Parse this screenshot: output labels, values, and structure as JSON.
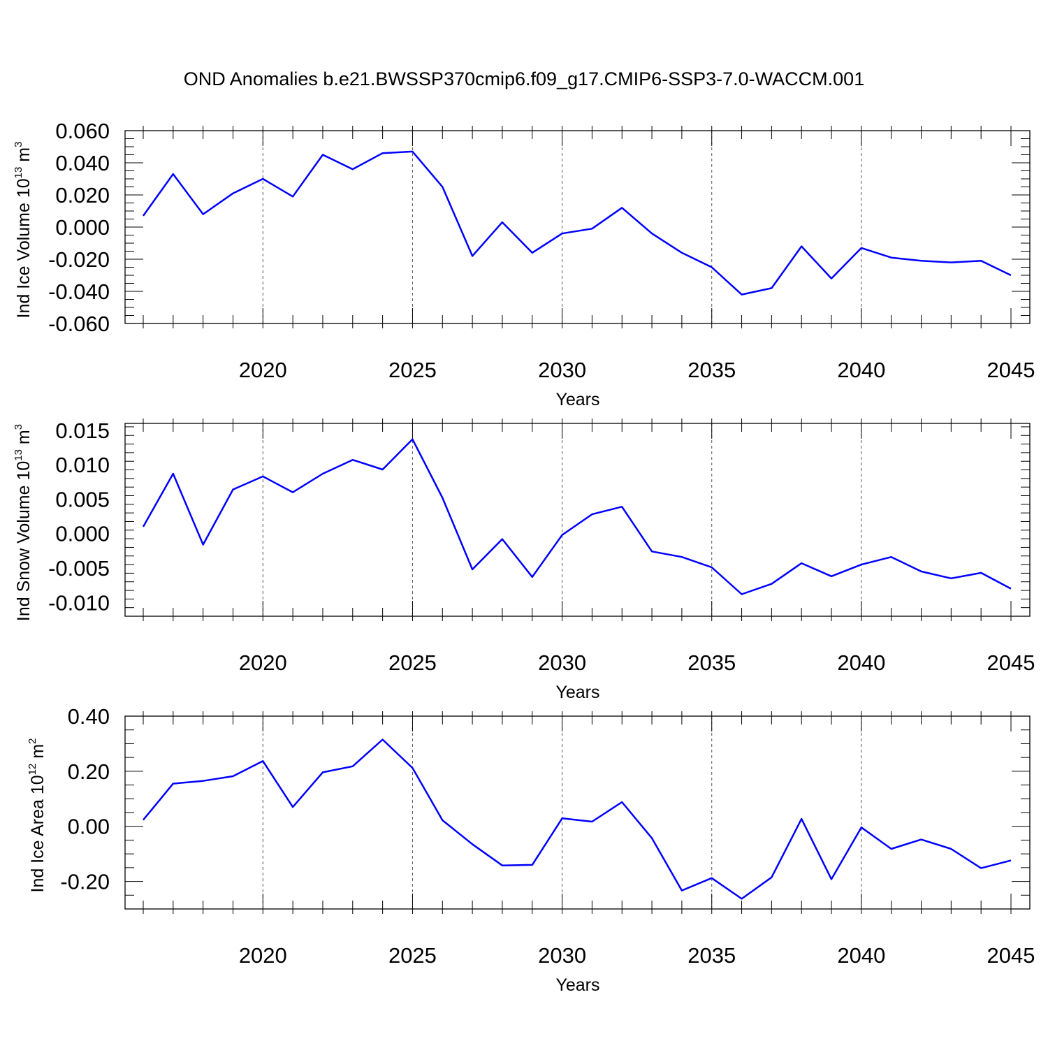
{
  "title": "OND Anomalies b.e21.BWSSP370cmip6.f09_g17.CMIP6-SSP3-7.0-WACCM.001",
  "line_color": "#0000ff",
  "chart_data": [
    {
      "type": "line",
      "xlabel": "Years",
      "ylabel": {
        "main": "Ind Ice Volume 10",
        "sup1": "13",
        "mid": " m",
        "sup2": "3"
      },
      "xlim": [
        2016,
        2045
      ],
      "ylim": [
        -0.06,
        0.06
      ],
      "xticks": [
        "2020",
        "2025",
        "2030",
        "2035",
        "2040",
        "2045"
      ],
      "yticks": [
        "0.060",
        "0.040",
        "0.020",
        "0.000",
        "-0.020",
        "-0.040",
        "-0.060"
      ],
      "yticks_values": [
        0.06,
        0.04,
        0.02,
        0.0,
        -0.02,
        -0.04,
        -0.06
      ],
      "x": [
        2016,
        2017,
        2018,
        2019,
        2020,
        2021,
        2022,
        2023,
        2024,
        2025,
        2026,
        2027,
        2028,
        2029,
        2030,
        2031,
        2032,
        2033,
        2034,
        2035,
        2036,
        2037,
        2038,
        2039,
        2040,
        2041,
        2042,
        2043,
        2044,
        2045
      ],
      "values": [
        0.007,
        0.033,
        0.008,
        0.021,
        0.03,
        0.019,
        0.045,
        0.036,
        0.046,
        0.047,
        0.025,
        -0.018,
        0.003,
        -0.016,
        -0.004,
        -0.001,
        0.012,
        -0.004,
        -0.016,
        -0.025,
        -0.042,
        -0.038,
        -0.012,
        -0.032,
        -0.013,
        -0.019,
        -0.021,
        -0.022,
        -0.021,
        -0.03
      ],
      "grid": "vertical dashed at labeled years"
    },
    {
      "type": "line",
      "xlabel": "Years",
      "ylabel": {
        "main": "Ind Snow Volume 10",
        "sup1": "13",
        "mid": " m",
        "sup2": "3"
      },
      "xlim": [
        2016,
        2045
      ],
      "ylim": [
        -0.012,
        0.016
      ],
      "xticks": [
        "2020",
        "2025",
        "2030",
        "2035",
        "2040",
        "2045"
      ],
      "yticks": [
        "0.015",
        "0.010",
        "0.005",
        "0.000",
        "-0.005",
        "-0.010"
      ],
      "yticks_values": [
        0.015,
        0.01,
        0.005,
        0.0,
        -0.005,
        -0.01
      ],
      "x": [
        2016,
        2017,
        2018,
        2019,
        2020,
        2021,
        2022,
        2023,
        2024,
        2025,
        2026,
        2027,
        2028,
        2029,
        2030,
        2031,
        2032,
        2033,
        2034,
        2035,
        2036,
        2037,
        2038,
        2039,
        2040,
        2041,
        2042,
        2043,
        2044,
        2045
      ],
      "values": [
        0.001,
        0.0087,
        -0.0016,
        0.0064,
        0.0083,
        0.006,
        0.0087,
        0.0107,
        0.0093,
        0.0137,
        0.0052,
        -0.0052,
        -0.0008,
        -0.0063,
        -0.0002,
        0.0028,
        0.0039,
        -0.0026,
        -0.0034,
        -0.0049,
        -0.0088,
        -0.0073,
        -0.0043,
        -0.0062,
        -0.0045,
        -0.0034,
        -0.0055,
        -0.0065,
        -0.0057,
        -0.008
      ],
      "grid": "vertical dashed at labeled years"
    },
    {
      "type": "line",
      "xlabel": "Years",
      "ylabel": {
        "main": "Ind Ice Area 10",
        "sup1": "12",
        "mid": " m",
        "sup2": "2"
      },
      "xlim": [
        2016,
        2045
      ],
      "ylim": [
        -0.3,
        0.4
      ],
      "xticks": [
        "2020",
        "2025",
        "2030",
        "2035",
        "2040",
        "2045"
      ],
      "yticks": [
        "0.40",
        "0.20",
        "0.00",
        "-0.20"
      ],
      "yticks_values": [
        0.4,
        0.2,
        0.0,
        -0.2
      ],
      "x": [
        2016,
        2017,
        2018,
        2019,
        2020,
        2021,
        2022,
        2023,
        2024,
        2025,
        2026,
        2027,
        2028,
        2029,
        2030,
        2031,
        2032,
        2033,
        2034,
        2035,
        2036,
        2037,
        2038,
        2039,
        2040,
        2041,
        2042,
        2043,
        2044,
        2045
      ],
      "values": [
        0.023,
        0.155,
        0.165,
        0.182,
        0.237,
        0.07,
        0.196,
        0.218,
        0.315,
        0.212,
        0.022,
        -0.065,
        -0.142,
        -0.14,
        0.029,
        0.017,
        0.088,
        -0.043,
        -0.233,
        -0.188,
        -0.263,
        -0.185,
        0.027,
        -0.192,
        -0.004,
        -0.082,
        -0.048,
        -0.082,
        -0.152,
        -0.124
      ],
      "grid": "vertical dashed at labeled years"
    }
  ]
}
